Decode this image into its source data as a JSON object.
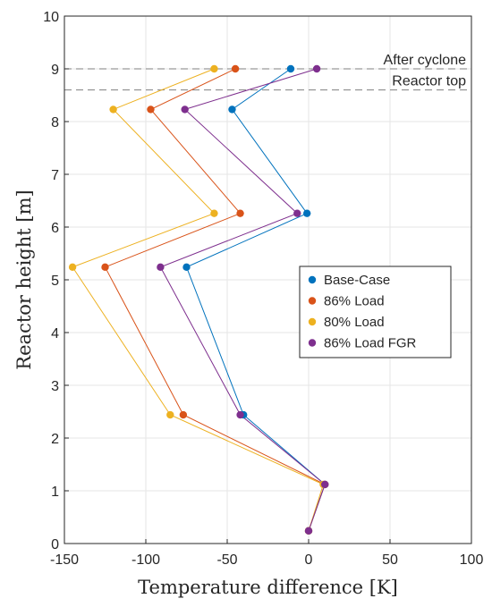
{
  "chart_data": {
    "type": "line",
    "xlabel": "Temperature difference [K]",
    "ylabel": "Reactor height [m]",
    "xlim": [
      -150,
      100
    ],
    "ylim": [
      0,
      10
    ],
    "xticks": [
      -150,
      -100,
      -50,
      0,
      50,
      100
    ],
    "yticks": [
      0,
      1,
      2,
      3,
      4,
      5,
      6,
      7,
      8,
      9,
      10
    ],
    "xtick_labels": [
      "-150",
      "-100",
      "-50",
      "0",
      "50",
      "100"
    ],
    "ytick_labels": [
      "0",
      "1",
      "2",
      "3",
      "4",
      "5",
      "6",
      "7",
      "8",
      "9",
      "10"
    ],
    "grid": true,
    "legend_position": "right",
    "reference_lines": [
      {
        "y": 9.0,
        "label": "After cyclone"
      },
      {
        "y": 8.6,
        "label": "Reactor top"
      }
    ],
    "series": [
      {
        "name": "Base-Case",
        "color": "#0072BD",
        "x": [
          0,
          10,
          -40,
          -75,
          -1,
          -47,
          -11
        ],
        "y": [
          0.24,
          1.12,
          2.44,
          5.24,
          6.26,
          8.23,
          9.0
        ]
      },
      {
        "name": "86% Load",
        "color": "#D95319",
        "x": [
          0,
          10,
          -77,
          -125,
          -42,
          -97,
          -45
        ],
        "y": [
          0.24,
          1.12,
          2.44,
          5.24,
          6.26,
          8.23,
          9.0
        ]
      },
      {
        "name": "80% Load",
        "color": "#EDB120",
        "x": [
          0,
          9,
          -85,
          -145,
          -58,
          -120,
          -58
        ],
        "y": [
          0.24,
          1.12,
          2.44,
          5.24,
          6.26,
          8.23,
          9.0
        ]
      },
      {
        "name": "86% Load FGR",
        "color": "#7E2F8E",
        "x": [
          0,
          10,
          -42,
          -91,
          -7,
          -76,
          5
        ],
        "y": [
          0.24,
          1.12,
          2.44,
          5.24,
          6.26,
          8.23,
          9.0
        ]
      }
    ]
  }
}
